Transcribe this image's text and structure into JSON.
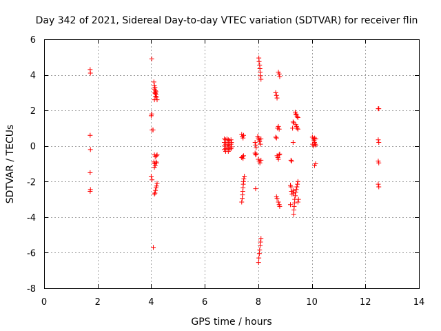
{
  "chart_data": {
    "type": "scatter",
    "title": "Day 342 of 2021, Sidereal Day-to-day VTEC variation (SDTVAR) for receiver flin",
    "xlabel": "GPS time / hours",
    "ylabel": "SDTVAR / TECUs",
    "xlim": [
      0,
      14
    ],
    "ylim": [
      -8,
      6
    ],
    "xticks": [
      0,
      2,
      4,
      6,
      8,
      10,
      12,
      14
    ],
    "yticks": [
      -8,
      -6,
      -4,
      -2,
      0,
      2,
      4,
      6
    ],
    "grid": true,
    "marker": "plus",
    "color": "#ff0000",
    "series": [
      {
        "name": "SDTVAR",
        "points": [
          [
            1.72,
            4.3
          ],
          [
            1.73,
            4.1
          ],
          [
            1.72,
            0.6
          ],
          [
            1.73,
            -0.2
          ],
          [
            1.72,
            -1.5
          ],
          [
            1.73,
            -2.45
          ],
          [
            1.72,
            -2.55
          ],
          [
            4.02,
            4.9
          ],
          [
            4.02,
            1.8
          ],
          [
            4.0,
            1.7
          ],
          [
            4.03,
            0.9
          ],
          [
            4.07,
            0.9
          ],
          [
            4.0,
            -1.7
          ],
          [
            4.03,
            -1.9
          ],
          [
            4.08,
            -5.7
          ],
          [
            4.1,
            3.6
          ],
          [
            4.12,
            3.4
          ],
          [
            4.14,
            3.3
          ],
          [
            4.12,
            3.2
          ],
          [
            4.16,
            3.1
          ],
          [
            4.14,
            3.0
          ],
          [
            4.18,
            2.9
          ],
          [
            4.16,
            2.8
          ],
          [
            4.2,
            2.75
          ],
          [
            4.12,
            2.6
          ],
          [
            4.22,
            2.6
          ],
          [
            4.18,
            3.05
          ],
          [
            4.15,
            2.95
          ],
          [
            4.12,
            -0.5
          ],
          [
            4.15,
            -0.6
          ],
          [
            4.2,
            -0.55
          ],
          [
            4.22,
            -0.5
          ],
          [
            4.1,
            -0.9
          ],
          [
            4.13,
            -1.0
          ],
          [
            4.18,
            -0.9
          ],
          [
            4.2,
            -0.95
          ],
          [
            4.15,
            -1.1
          ],
          [
            4.12,
            -1.2
          ],
          [
            4.22,
            -2.1
          ],
          [
            4.2,
            -2.25
          ],
          [
            4.18,
            -2.35
          ],
          [
            4.16,
            -2.5
          ],
          [
            4.14,
            -2.65
          ],
          [
            4.12,
            -2.7
          ],
          [
            6.73,
            0.4
          ],
          [
            6.73,
            0.2
          ],
          [
            6.73,
            0.0
          ],
          [
            6.73,
            -0.2
          ],
          [
            6.78,
            0.35
          ],
          [
            6.78,
            0.1
          ],
          [
            6.78,
            -0.15
          ],
          [
            6.78,
            -0.3
          ],
          [
            6.83,
            0.4
          ],
          [
            6.83,
            0.2
          ],
          [
            6.83,
            0.0
          ],
          [
            6.83,
            -0.2
          ],
          [
            6.88,
            0.35
          ],
          [
            6.88,
            0.1
          ],
          [
            6.88,
            -0.1
          ],
          [
            6.88,
            -0.3
          ],
          [
            6.93,
            0.3
          ],
          [
            6.93,
            0.05
          ],
          [
            6.93,
            -0.2
          ],
          [
            6.98,
            0.35
          ],
          [
            6.98,
            0.1
          ],
          [
            6.98,
            -0.15
          ],
          [
            7.0,
            0.2
          ],
          [
            7.0,
            -0.05
          ],
          [
            7.38,
            0.65
          ],
          [
            7.4,
            0.55
          ],
          [
            7.43,
            0.45
          ],
          [
            7.45,
            0.6
          ],
          [
            7.4,
            -0.6
          ],
          [
            7.43,
            -0.7
          ],
          [
            7.38,
            -0.65
          ],
          [
            7.45,
            -0.55
          ],
          [
            7.48,
            -1.7
          ],
          [
            7.46,
            -1.85
          ],
          [
            7.45,
            -2.0
          ],
          [
            7.44,
            -2.15
          ],
          [
            7.43,
            -2.35
          ],
          [
            7.42,
            -2.55
          ],
          [
            7.41,
            -2.75
          ],
          [
            7.4,
            -2.95
          ],
          [
            7.38,
            -3.15
          ],
          [
            7.88,
            0.2
          ],
          [
            7.9,
            0.05
          ],
          [
            7.92,
            -0.1
          ],
          [
            7.88,
            -0.4
          ],
          [
            7.9,
            -0.5
          ],
          [
            7.92,
            -0.45
          ],
          [
            7.9,
            -2.4
          ],
          [
            8.02,
            4.95
          ],
          [
            8.03,
            4.75
          ],
          [
            8.05,
            4.55
          ],
          [
            8.06,
            4.35
          ],
          [
            8.07,
            4.15
          ],
          [
            8.08,
            3.95
          ],
          [
            8.1,
            3.75
          ],
          [
            7.98,
            0.55
          ],
          [
            8.0,
            0.45
          ],
          [
            8.03,
            0.35
          ],
          [
            8.05,
            0.25
          ],
          [
            8.08,
            0.1
          ],
          [
            8.1,
            0.4
          ],
          [
            8.0,
            -0.75
          ],
          [
            8.03,
            -0.85
          ],
          [
            8.06,
            -0.95
          ],
          [
            8.1,
            -0.8
          ],
          [
            8.1,
            -5.2
          ],
          [
            8.08,
            -5.4
          ],
          [
            8.07,
            -5.6
          ],
          [
            8.05,
            -5.85
          ],
          [
            8.04,
            -6.05
          ],
          [
            8.02,
            -6.3
          ],
          [
            8.01,
            -6.55
          ],
          [
            8.65,
            3.0
          ],
          [
            8.68,
            2.85
          ],
          [
            8.7,
            2.7
          ],
          [
            8.75,
            4.15
          ],
          [
            8.78,
            4.05
          ],
          [
            8.8,
            3.9
          ],
          [
            8.72,
            1.0
          ],
          [
            8.75,
            1.1
          ],
          [
            8.78,
            0.95
          ],
          [
            8.65,
            0.5
          ],
          [
            8.68,
            0.45
          ],
          [
            8.7,
            -0.55
          ],
          [
            8.73,
            -0.65
          ],
          [
            8.75,
            -0.75
          ],
          [
            8.78,
            -0.5
          ],
          [
            8.8,
            -0.45
          ],
          [
            8.68,
            -2.85
          ],
          [
            8.7,
            -2.95
          ],
          [
            8.75,
            -3.15
          ],
          [
            8.78,
            -3.3
          ],
          [
            8.8,
            -3.4
          ],
          [
            9.22,
            -0.8
          ],
          [
            9.25,
            -0.85
          ],
          [
            9.3,
            0.2
          ],
          [
            9.28,
            1.0
          ],
          [
            9.33,
            1.3
          ],
          [
            9.3,
            1.35
          ],
          [
            9.38,
            1.9
          ],
          [
            9.4,
            1.8
          ],
          [
            9.42,
            1.75
          ],
          [
            9.45,
            1.65
          ],
          [
            9.48,
            1.6
          ],
          [
            9.4,
            1.2
          ],
          [
            9.43,
            1.1
          ],
          [
            9.45,
            1.0
          ],
          [
            9.48,
            0.95
          ],
          [
            9.2,
            -2.2
          ],
          [
            9.22,
            -2.3
          ],
          [
            9.24,
            -2.55
          ],
          [
            9.26,
            -2.7
          ],
          [
            9.3,
            -2.5
          ],
          [
            9.32,
            -2.65
          ],
          [
            9.48,
            -2.0
          ],
          [
            9.46,
            -2.15
          ],
          [
            9.44,
            -2.3
          ],
          [
            9.42,
            -2.45
          ],
          [
            9.4,
            -2.6
          ],
          [
            9.38,
            -2.8
          ],
          [
            9.36,
            -3.0
          ],
          [
            9.35,
            -3.2
          ],
          [
            9.34,
            -3.4
          ],
          [
            9.33,
            -3.6
          ],
          [
            9.32,
            -3.85
          ],
          [
            9.2,
            -3.3
          ],
          [
            9.5,
            -3.0
          ],
          [
            9.48,
            -3.15
          ],
          [
            10.02,
            0.5
          ],
          [
            10.05,
            0.4
          ],
          [
            10.08,
            0.3
          ],
          [
            10.1,
            0.2
          ],
          [
            10.12,
            0.1
          ],
          [
            10.15,
            0.05
          ],
          [
            10.03,
            0.1
          ],
          [
            10.06,
            0.0
          ],
          [
            10.1,
            0.45
          ],
          [
            10.15,
            0.4
          ],
          [
            10.1,
            -1.1
          ],
          [
            10.14,
            -1.0
          ],
          [
            12.48,
            2.1
          ],
          [
            12.5,
            2.1
          ],
          [
            12.48,
            0.35
          ],
          [
            12.5,
            0.2
          ],
          [
            12.48,
            -0.85
          ],
          [
            12.5,
            -0.95
          ],
          [
            12.48,
            -2.15
          ],
          [
            12.5,
            -2.3
          ]
        ]
      }
    ]
  }
}
